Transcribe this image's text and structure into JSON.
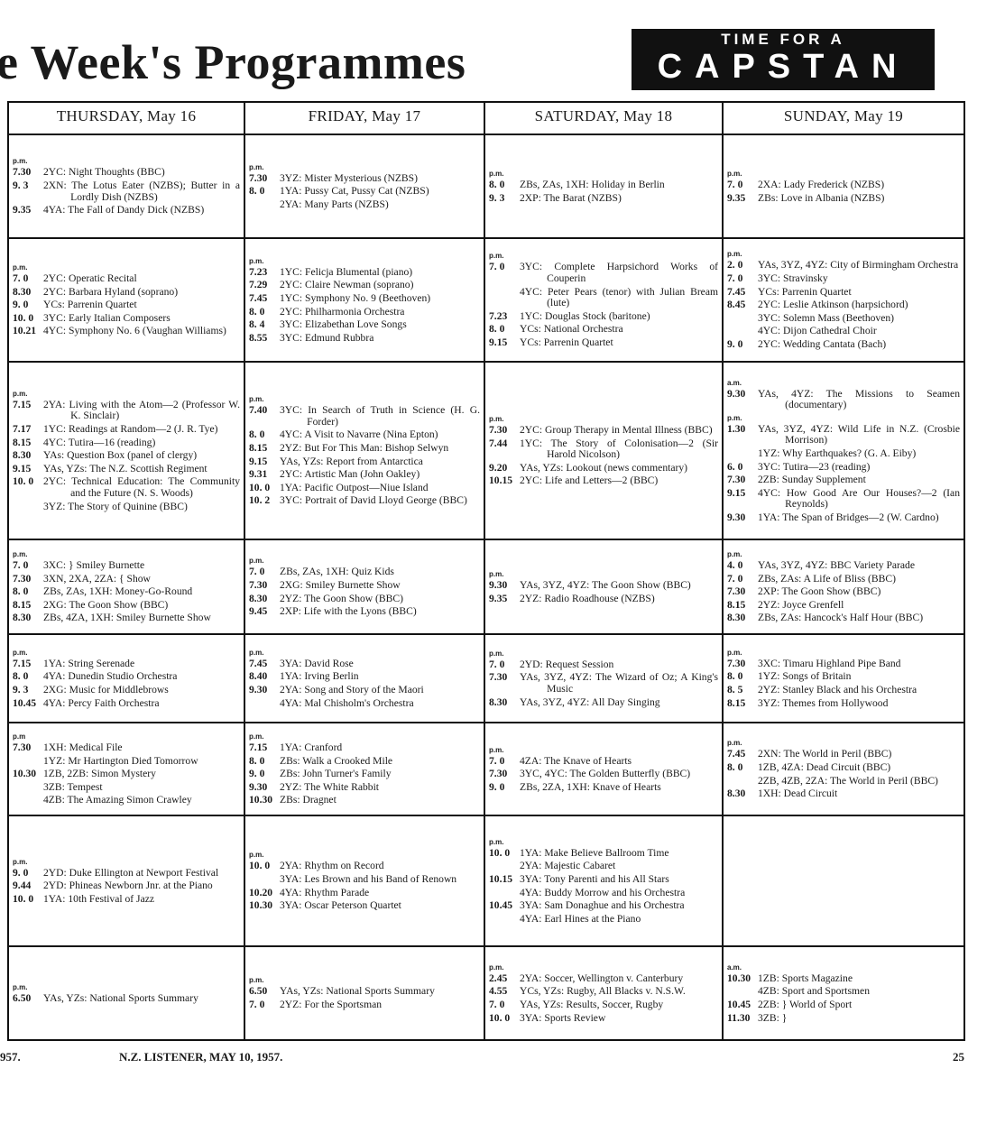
{
  "header": {
    "title": "e Week's Programmes",
    "logo_line1": "TIME FOR A",
    "logo_line2": "CAPSTAN"
  },
  "days": [
    "THURSDAY, May 16",
    "FRIDAY, May 17",
    "SATURDAY, May 18",
    "SUNDAY, May 19"
  ],
  "rows": [
    [
      {
        "entries": [
          {
            "period": "p.m.",
            "time": "7.30",
            "text": "2YC: Night Thoughts (BBC)"
          },
          {
            "time": "9. 3",
            "text": "2XN: The Lotus Eater (NZBS); Butter in a Lordly Dish (NZBS)"
          },
          {
            "time": "9.35",
            "text": "4YA: The Fall of Dandy Dick (NZBS)"
          }
        ]
      },
      {
        "entries": [
          {
            "period": "p.m.",
            "time": "7.30",
            "text": "3YZ: Mister Mysterious (NZBS)"
          },
          {
            "time": "8. 0",
            "text": "1YA: Pussy Cat, Pussy Cat (NZBS)"
          },
          {
            "time": "",
            "text": "2YA: Many Parts (NZBS)"
          }
        ]
      },
      {
        "entries": [
          {
            "period": "p.m.",
            "time": "8. 0",
            "text": "ZBs, ZAs, 1XH: Holiday in Berlin"
          },
          {
            "time": "9. 3",
            "text": "2XP: The Barat (NZBS)"
          }
        ]
      },
      {
        "entries": [
          {
            "period": "p.m.",
            "time": "7. 0",
            "text": "2XA: Lady Frederick (NZBS)"
          },
          {
            "time": "9.35",
            "text": "ZBs: Love in Albania (NZBS)"
          }
        ]
      }
    ],
    [
      {
        "entries": [
          {
            "period": "p.m.",
            "time": "7. 0",
            "text": "2YC: Operatic Recital"
          },
          {
            "time": "8.30",
            "text": "2YC: Barbara Hyland (soprano)"
          },
          {
            "time": "9. 0",
            "text": "YCs: Parrenin Quartet"
          },
          {
            "time": "10. 0",
            "text": "3YC: Early Italian Composers"
          },
          {
            "time": "10.21",
            "text": "4YC: Symphony No. 6 (Vaughan Williams)"
          }
        ]
      },
      {
        "entries": [
          {
            "period": "p.m.",
            "time": "7.23",
            "text": "1YC: Felicja Blumental (piano)"
          },
          {
            "time": "7.29",
            "text": "2YC: Claire Newman (soprano)"
          },
          {
            "time": "7.45",
            "text": "1YC: Symphony No. 9 (Beethoven)"
          },
          {
            "time": "8. 0",
            "text": "2YC: Philharmonia Orchestra"
          },
          {
            "time": "8. 4",
            "text": "3YC: Elizabethan Love Songs"
          },
          {
            "time": "8.55",
            "text": "3YC: Edmund Rubbra"
          }
        ]
      },
      {
        "entries": [
          {
            "period": "p.m.",
            "time": "7. 0",
            "text": "3YC: Complete Harpsichord Works of Couperin"
          },
          {
            "time": "",
            "text": "4YC: Peter Pears (tenor) with Julian Bream (lute)"
          },
          {
            "time": "7.23",
            "text": "1YC: Douglas Stock (baritone)"
          },
          {
            "time": "8. 0",
            "text": "YCs: National Orchestra"
          },
          {
            "time": "9.15",
            "text": "YCs: Parrenin Quartet"
          }
        ]
      },
      {
        "entries": [
          {
            "period": "p.m.",
            "time": "2. 0",
            "text": "YAs, 3YZ, 4YZ: City of Birmingham Orchestra"
          },
          {
            "time": "7. 0",
            "text": "3YC: Stravinsky"
          },
          {
            "time": "7.45",
            "text": "YCs: Parrenin Quartet"
          },
          {
            "time": "8.45",
            "text": "2YC: Leslie Atkinson (harpsichord)"
          },
          {
            "time": "",
            "text": "3YC: Solemn Mass (Beethoven)"
          },
          {
            "time": "",
            "text": "4YC: Dijon Cathedral Choir"
          },
          {
            "time": "9. 0",
            "text": "2YC: Wedding Cantata (Bach)"
          }
        ]
      }
    ],
    [
      {
        "entries": [
          {
            "period": "p.m.",
            "time": "7.15",
            "text": "2YA: Living with the Atom—2 (Professor W. K. Sinclair)"
          },
          {
            "time": "7.17",
            "text": "1YC: Readings at Random—2 (J. R. Tye)"
          },
          {
            "time": "8.15",
            "text": "4YC: Tutira—16 (reading)"
          },
          {
            "time": "8.30",
            "text": "YAs: Question Box (panel of clergy)"
          },
          {
            "time": "9.15",
            "text": "YAs, YZs: The N.Z. Scottish Regiment"
          },
          {
            "time": "10. 0",
            "text": "2YC: Technical Education: The Community and the Future (N. S. Woods)"
          },
          {
            "time": "",
            "text": "3YZ: The Story of Quinine (BBC)"
          }
        ]
      },
      {
        "entries": [
          {
            "period": "p.m.",
            "time": "7.40",
            "text": "3YC: In Search of Truth in Science (H. G. Forder)"
          },
          {
            "time": "8. 0",
            "text": "4YC: A Visit to Navarre (Nina Epton)"
          },
          {
            "time": "8.15",
            "text": "2YZ: But For This Man: Bishop Selwyn"
          },
          {
            "time": "9.15",
            "text": "YAs, YZs: Report from Antarctica"
          },
          {
            "time": "9.31",
            "text": "2YC: Artistic Man (John Oakley)"
          },
          {
            "time": "10. 0",
            "text": "1YA: Pacific Outpost—Niue Island"
          },
          {
            "time": "10. 2",
            "text": "3YC: Portrait of David Lloyd George (BBC)"
          }
        ]
      },
      {
        "entries": [
          {
            "period": "p.m.",
            "time": "7.30",
            "text": "2YC: Group Therapy in Mental Illness (BBC)"
          },
          {
            "time": "7.44",
            "text": "1YC: The Story of Colonisation—2 (Sir Harold Nicolson)"
          },
          {
            "time": "9.20",
            "text": "YAs, YZs: Lookout (news commentary)"
          },
          {
            "time": "10.15",
            "text": "2YC: Life and Letters—2 (BBC)"
          }
        ]
      },
      {
        "entries": [
          {
            "period": "a.m.",
            "time": "9.30",
            "text": "YAs, 4YZ: The Missions to Seamen (documentary)"
          },
          {
            "period": "p.m.",
            "time": "1.30",
            "text": "YAs, 3YZ, 4YZ: Wild Life in N.Z. (Crosbie Morrison)"
          },
          {
            "time": "",
            "text": "1YZ: Why Earthquakes? (G. A. Eiby)"
          },
          {
            "time": "6. 0",
            "text": "3YC: Tutira—23 (reading)"
          },
          {
            "time": "7.30",
            "text": "2ZB: Sunday Supplement"
          },
          {
            "time": "9.15",
            "text": "4YC: How Good Are Our Houses?—2 (Ian Reynolds)"
          },
          {
            "time": "9.30",
            "text": "1YA: The Span of Bridges—2 (W. Cardno)"
          }
        ]
      }
    ],
    [
      {
        "entries": [
          {
            "period": "p.m.",
            "time": "7. 0",
            "text": "3XC:                } Smiley Burnette"
          },
          {
            "time": "7.30",
            "text": "3XN, 2XA, 2ZA: {   Show"
          },
          {
            "time": "8. 0",
            "text": "ZBs, ZAs, 1XH: Money-Go-Round"
          },
          {
            "time": "8.15",
            "text": "2XG: The Goon Show (BBC)"
          },
          {
            "time": "8.30",
            "text": "ZBs, 4ZA, 1XH: Smiley Burnette Show"
          }
        ]
      },
      {
        "entries": [
          {
            "period": "p.m.",
            "time": "7. 0",
            "text": "ZBs, ZAs, 1XH: Quiz Kids"
          },
          {
            "time": "7.30",
            "text": "2XG: Smiley Burnette Show"
          },
          {
            "time": "8.30",
            "text": "2YZ: The Goon Show (BBC)"
          },
          {
            "time": "9.45",
            "text": "2XP: Life with the Lyons (BBC)"
          }
        ]
      },
      {
        "entries": [
          {
            "period": "p.m.",
            "time": "9.30",
            "text": "YAs, 3YZ, 4YZ: The Goon Show (BBC)"
          },
          {
            "time": "9.35",
            "text": "2YZ: Radio Roadhouse (NZBS)"
          }
        ]
      },
      {
        "entries": [
          {
            "period": "p.m.",
            "time": "4. 0",
            "text": "YAs, 3YZ, 4YZ: BBC Variety Parade"
          },
          {
            "time": "7. 0",
            "text": "ZBs, ZAs: A Life of Bliss (BBC)"
          },
          {
            "time": "7.30",
            "text": "2XP: The Goon Show (BBC)"
          },
          {
            "time": "8.15",
            "text": "2YZ: Joyce Grenfell"
          },
          {
            "time": "8.30",
            "text": "ZBs, ZAs: Hancock's Half Hour (BBC)"
          }
        ]
      }
    ],
    [
      {
        "entries": [
          {
            "period": "p.m.",
            "time": "7.15",
            "text": "1YA: String Serenade"
          },
          {
            "time": "8. 0",
            "text": "4YA: Dunedin Studio Orchestra"
          },
          {
            "time": "9. 3",
            "text": "2XG: Music for Middlebrows"
          },
          {
            "time": "10.45",
            "text": "4YA: Percy Faith Orchestra"
          }
        ]
      },
      {
        "entries": [
          {
            "period": "p.m.",
            "time": "7.45",
            "text": "3YA: David Rose"
          },
          {
            "time": "8.40",
            "text": "1YA: Irving Berlin"
          },
          {
            "time": "9.30",
            "text": "2YA: Song and Story of the Maori"
          },
          {
            "time": "",
            "text": "4YA: Mal Chisholm's Orchestra"
          }
        ]
      },
      {
        "entries": [
          {
            "period": "p.m.",
            "time": "7. 0",
            "text": "2YD: Request Session"
          },
          {
            "time": "7.30",
            "text": "YAs, 3YZ, 4YZ: The Wizard of Oz; A King's Music"
          },
          {
            "time": "8.30",
            "text": "YAs, 3YZ, 4YZ: All Day Singing"
          }
        ]
      },
      {
        "entries": [
          {
            "period": "p.m.",
            "time": "7.30",
            "text": "3XC: Timaru Highland Pipe Band"
          },
          {
            "time": "8. 0",
            "text": "1YZ: Songs of Britain"
          },
          {
            "time": "8. 5",
            "text": "2YZ: Stanley Black and his Orchestra"
          },
          {
            "time": "8.15",
            "text": "3YZ: Themes from Hollywood"
          }
        ]
      }
    ],
    [
      {
        "entries": [
          {
            "period": "p.m",
            "time": "7.30",
            "text": "1XH: Medical File"
          },
          {
            "time": "",
            "text": "1YZ: Mr Hartington Died Tomorrow"
          },
          {
            "time": "10.30",
            "text": "1ZB, 2ZB: Simon Mystery"
          },
          {
            "time": "",
            "text": "3ZB: Tempest"
          },
          {
            "time": "",
            "text": "4ZB: The Amazing Simon Crawley"
          }
        ]
      },
      {
        "entries": [
          {
            "period": "p.m.",
            "time": "7.15",
            "text": "1YA: Cranford"
          },
          {
            "time": "8. 0",
            "text": "ZBs: Walk a Crooked Mile"
          },
          {
            "time": "9. 0",
            "text": "ZBs: John Turner's Family"
          },
          {
            "time": "9.30",
            "text": "2YZ: The White Rabbit"
          },
          {
            "time": "10.30",
            "text": "ZBs: Dragnet"
          }
        ]
      },
      {
        "entries": [
          {
            "period": "p.m.",
            "time": "7. 0",
            "text": "4ZA: The Knave of Hearts"
          },
          {
            "time": "7.30",
            "text": "3YC, 4YC: The Golden Butterfly (BBC)"
          },
          {
            "time": "9. 0",
            "text": "ZBs, 2ZA, 1XH: Knave of Hearts"
          }
        ]
      },
      {
        "entries": [
          {
            "period": "p.m.",
            "time": "7.45",
            "text": "2XN: The World in Peril (BBC)"
          },
          {
            "time": "8. 0",
            "text": "1ZB, 4ZA: Dead Circuit (BBC)"
          },
          {
            "time": "",
            "text": "2ZB, 4ZB, 2ZA: The World in Peril (BBC)"
          },
          {
            "time": "8.30",
            "text": "1XH: Dead Circuit"
          }
        ]
      }
    ],
    [
      {
        "entries": [
          {
            "period": "p.m.",
            "time": "9. 0",
            "text": "2YD: Duke Ellington at Newport Festival"
          },
          {
            "time": "9.44",
            "text": "2YD: Phineas Newborn Jnr. at the Piano"
          },
          {
            "time": "10. 0",
            "text": "1YA: 10th Festival of Jazz"
          }
        ]
      },
      {
        "entries": [
          {
            "period": "p.m.",
            "time": "10. 0",
            "text": "2YA: Rhythm on Record"
          },
          {
            "time": "",
            "text": "3YA: Les Brown and his Band of Renown"
          },
          {
            "time": "10.20",
            "text": "4YA: Rhythm Parade"
          },
          {
            "time": "10.30",
            "text": "3YA: Oscar Peterson Quartet"
          }
        ]
      },
      {
        "entries": [
          {
            "period": "p.m.",
            "time": "10. 0",
            "text": "1YA: Make Believe Ballroom Time"
          },
          {
            "time": "",
            "text": "2YA: Majestic Cabaret"
          },
          {
            "time": "10.15",
            "text": "3YA: Tony Parenti and his All Stars"
          },
          {
            "time": "",
            "text": "4YA: Buddy Morrow and his Orchestra"
          },
          {
            "time": "10.45",
            "text": "3YA: Sam Donaghue and his Orchestra"
          },
          {
            "time": "",
            "text": "4YA: Earl Hines at the Piano"
          }
        ]
      },
      {
        "entries": []
      }
    ],
    [
      {
        "entries": [
          {
            "period": "p.m.",
            "time": "6.50",
            "text": "YAs, YZs: National Sports Summary"
          }
        ]
      },
      {
        "entries": [
          {
            "period": "p.m.",
            "time": "6.50",
            "text": "YAs, YZs: National Sports Summary"
          },
          {
            "time": "7. 0",
            "text": "2YZ: For the Sportsman"
          }
        ]
      },
      {
        "entries": [
          {
            "period": "p.m.",
            "time": "2.45",
            "text": "2YA: Soccer, Wellington v. Canterbury"
          },
          {
            "time": "4.55",
            "text": "YCs, YZs: Rugby, All Blacks v. N.S.W."
          },
          {
            "time": "7. 0",
            "text": "YAs, YZs: Results, Soccer, Rugby"
          },
          {
            "time": "10. 0",
            "text": "3YA: Sports Review"
          }
        ]
      },
      {
        "entries": [
          {
            "period": "a.m.",
            "time": "10.30",
            "text": "1ZB: Sports Magazine"
          },
          {
            "time": "",
            "text": "4ZB: Sport and Sportsmen"
          },
          {
            "time": "10.45",
            "text": "2ZB: } World of Sport"
          },
          {
            "time": "11.30",
            "text": "3ZB: }"
          }
        ]
      }
    ]
  ],
  "footer": {
    "left": "957.",
    "center": "N.Z. LISTENER, MAY 10, 1957.",
    "page": "25"
  }
}
